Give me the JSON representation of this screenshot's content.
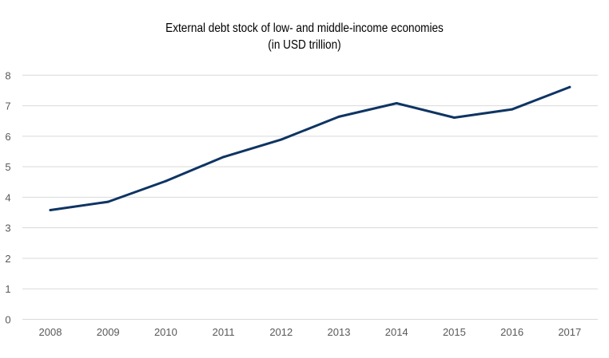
{
  "chart_data": {
    "type": "line",
    "title": "External debt stock of low- and middle-income economies",
    "subtitle": "(in USD trillion)",
    "xlabel": "",
    "ylabel": "",
    "categories": [
      "2008",
      "2009",
      "2010",
      "2011",
      "2012",
      "2013",
      "2014",
      "2015",
      "2016",
      "2017"
    ],
    "series": [
      {
        "name": "External debt stock",
        "values": [
          3.58,
          3.85,
          4.53,
          5.32,
          5.89,
          6.64,
          7.08,
          6.61,
          6.88,
          7.61
        ],
        "color": "#0e3463"
      }
    ],
    "ylim": [
      0,
      8
    ],
    "yticks": [
      "0",
      "1",
      "2",
      "3",
      "4",
      "5",
      "6",
      "7",
      "8"
    ],
    "grid": true,
    "legend": "none"
  }
}
